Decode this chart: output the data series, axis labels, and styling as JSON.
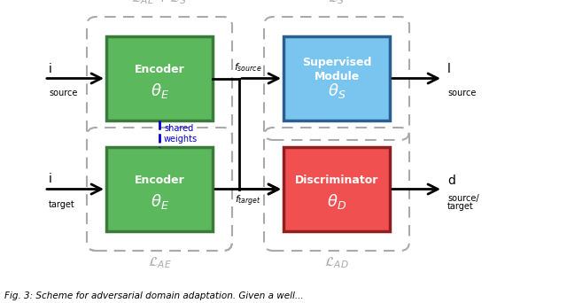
{
  "fig_width": 6.4,
  "fig_height": 3.42,
  "dpi": 100,
  "bg_color": "#ffffff",
  "encoder_color": "#5cb85c",
  "encoder_edge_color": "#3a7a3a",
  "supervised_color": "#7ac4f0",
  "supervised_edge_color": "#2a6090",
  "discriminator_color": "#f05050",
  "discriminator_edge_color": "#902020",
  "arrow_color": "#000000",
  "shared_weights_color": "#0000cc",
  "dashed_border_color": "#aaaaaa",
  "encoder_top_label": "Encoder",
  "encoder_top_sublabel": "$\\theta_E$",
  "encoder_bot_label": "Encoder",
  "encoder_bot_sublabel": "$\\theta_E$",
  "supervised_label": "Supervised\nModule",
  "supervised_sublabel": "$\\theta_S$",
  "discriminator_label": "Discriminator",
  "discriminator_sublabel": "$\\theta_D$",
  "label_i_source": "i\nsource",
  "label_i_target": "i\ntarget",
  "label_f_source": "$f_{source}$",
  "label_f_target": "$f_{target}$",
  "label_l_source": "l\nsource",
  "label_d1": "d",
  "label_d2": "source/",
  "label_d3": "target",
  "label_shared_weights": "shared\nweights",
  "caption_top_left": "$\\mathcal{L}_{AE} + \\mathcal{L}_{S}$",
  "caption_top_right": "$\\mathcal{L}_{S}$",
  "caption_bot_left": "$\\mathcal{L}_{AE}$",
  "caption_bot_right": "$\\mathcal{L}_{AD}$",
  "fig_caption": "Fig. 3: Scheme for adversarial domain adaptation. Given a well..."
}
